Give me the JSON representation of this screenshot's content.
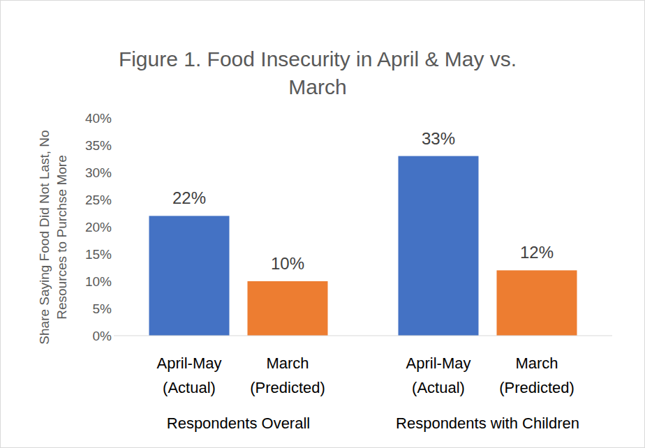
{
  "chart_data": {
    "type": "bar",
    "title": "Figure 1. Food Insecurity in April & May vs. March",
    "y_label": "Share Saying Food Did Not Last, No Resources to Purchse More",
    "categories": [
      "Respondents Overall",
      "Respondents with Children"
    ],
    "series": [
      {
        "name": "April-May (Actual)",
        "color": "#4472c4",
        "values": [
          22,
          33
        ],
        "value_labels": [
          "22%",
          "33%"
        ]
      },
      {
        "name": "March (Predicted)",
        "color": "#ed7d31",
        "values": [
          10,
          12
        ],
        "value_labels": [
          "10%",
          "12%"
        ]
      }
    ],
    "ylim": [
      0,
      40
    ],
    "yticks": [
      {
        "value": 0,
        "label": "0%"
      },
      {
        "value": 5,
        "label": "5%"
      },
      {
        "value": 10,
        "label": "10%"
      },
      {
        "value": 15,
        "label": "15%"
      },
      {
        "value": 20,
        "label": "20%"
      },
      {
        "value": 25,
        "label": "25%"
      },
      {
        "value": 30,
        "label": "30%"
      },
      {
        "value": 35,
        "label": "35%"
      },
      {
        "value": 40,
        "label": "40%"
      }
    ],
    "grid": false,
    "data_labels": true
  }
}
